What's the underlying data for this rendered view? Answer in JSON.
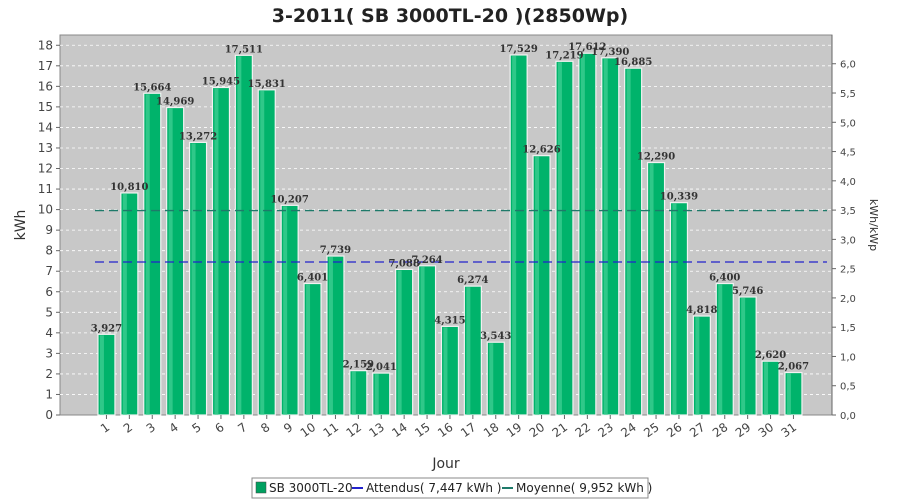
{
  "chart_data": {
    "type": "bar",
    "title": "3-2011( SB 3000TL-20 )(2850Wp)",
    "xlabel": "Jour",
    "ylabel": "kWh",
    "y2label": "kWh/kWp",
    "categories": [
      "1",
      "2",
      "3",
      "4",
      "5",
      "6",
      "7",
      "8",
      "9",
      "10",
      "11",
      "12",
      "13",
      "14",
      "15",
      "16",
      "17",
      "18",
      "19",
      "20",
      "21",
      "22",
      "23",
      "24",
      "25",
      "26",
      "27",
      "28",
      "29",
      "30",
      "31"
    ],
    "series": [
      {
        "name": "SB 3000TL-20",
        "values": [
          3.927,
          10.81,
          15.664,
          14.969,
          13.272,
          15.945,
          17.511,
          15.831,
          10.207,
          6.401,
          7.739,
          2.159,
          2.041,
          7.088,
          7.264,
          4.315,
          6.274,
          3.543,
          17.529,
          12.626,
          17.219,
          17.612,
          17.39,
          16.885,
          12.29,
          10.339,
          4.818,
          6.4,
          5.746,
          2.62,
          2.067
        ],
        "data_labels": [
          "3,927",
          "10,810",
          "15,664",
          "14,969",
          "13,272",
          "15,945",
          "17,511",
          "15,831",
          "10,207",
          "6,401",
          "7,739",
          "2,159",
          "2,041",
          "7,088",
          "7,264",
          "4,315",
          "6,274",
          "3,543",
          "17,529",
          "12,626",
          "17,219",
          "17,612",
          "17,390",
          "16,885",
          "12,290",
          "10,339",
          "4,818",
          "6,400",
          "5,746",
          "2,620",
          "2,067"
        ],
        "color": "#00b36b"
      }
    ],
    "reference_lines": [
      {
        "name": "Attendus( 7,447 kWh )",
        "value": 7.447,
        "color": "#2222cc"
      },
      {
        "name": "Moyenne( 9,952 kWh )",
        "value": 9.952,
        "color": "#1e7a6a"
      }
    ],
    "ylim": [
      0,
      18.5
    ],
    "yticks": [
      0,
      1,
      2,
      3,
      4,
      5,
      6,
      7,
      8,
      9,
      10,
      11,
      12,
      13,
      14,
      15,
      16,
      17,
      18
    ],
    "y2lim": [
      0,
      6.491
    ],
    "y2ticks": [
      "0,0",
      "0,5",
      "1,0",
      "1,5",
      "2,0",
      "2,5",
      "3,0",
      "3,5",
      "4,0",
      "4,5",
      "5,0",
      "5,5",
      "6,0"
    ],
    "y2tick_values": [
      0,
      0.5,
      1,
      1.5,
      2,
      2.5,
      3,
      3.5,
      4,
      4.5,
      5,
      5.5,
      6
    ],
    "grid": true,
    "legend_position": "bottom",
    "plot_background": "#c8c8c8"
  }
}
